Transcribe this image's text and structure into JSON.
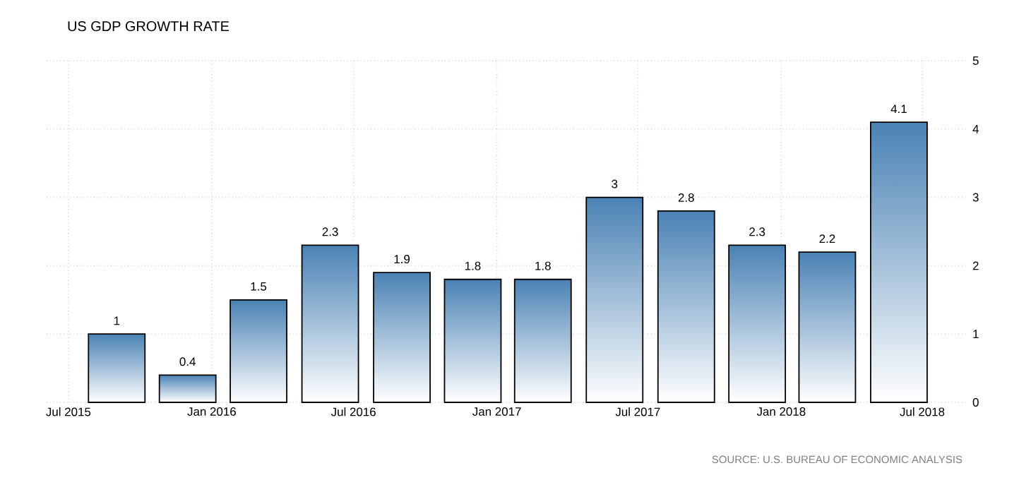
{
  "chart_data": {
    "type": "bar",
    "title": "US GDP GROWTH RATE",
    "annotations": [
      "SOURCE: U.S. BUREAU OF ECONOMIC ANALYSIS"
    ],
    "x": [
      "2015-09-01",
      "2015-12-01",
      "2016-03-01",
      "2016-06-01",
      "2016-09-01",
      "2016-12-01",
      "2017-03-01",
      "2017-06-01",
      "2017-09-01",
      "2017-12-01",
      "2018-03-01",
      "2018-06-01"
    ],
    "values": [
      1,
      0.4,
      1.5,
      2.3,
      1.9,
      1.8,
      1.8,
      3,
      2.8,
      2.3,
      2.2,
      4.1
    ],
    "color": "#4a82b4",
    "data_labels": true,
    "xlim": [
      "2015-06-03",
      "2018-08-28"
    ],
    "xticks": [
      {
        "value": "2015-07-01",
        "label": "Jul 2015"
      },
      {
        "value": "2016-01-01",
        "label": "Jan 2016"
      },
      {
        "value": "2016-07-01",
        "label": "Jul 2016"
      },
      {
        "value": "2017-01-01",
        "label": "Jan 2017"
      },
      {
        "value": "2017-07-01",
        "label": "Jul 2017"
      },
      {
        "value": "2018-01-01",
        "label": "Jan 2018"
      },
      {
        "value": "2018-07-01",
        "label": "Jul 2018"
      }
    ],
    "ylim": [
      0,
      5
    ],
    "yticks": [
      0,
      1,
      2,
      3,
      4,
      5
    ],
    "grid": true
  }
}
